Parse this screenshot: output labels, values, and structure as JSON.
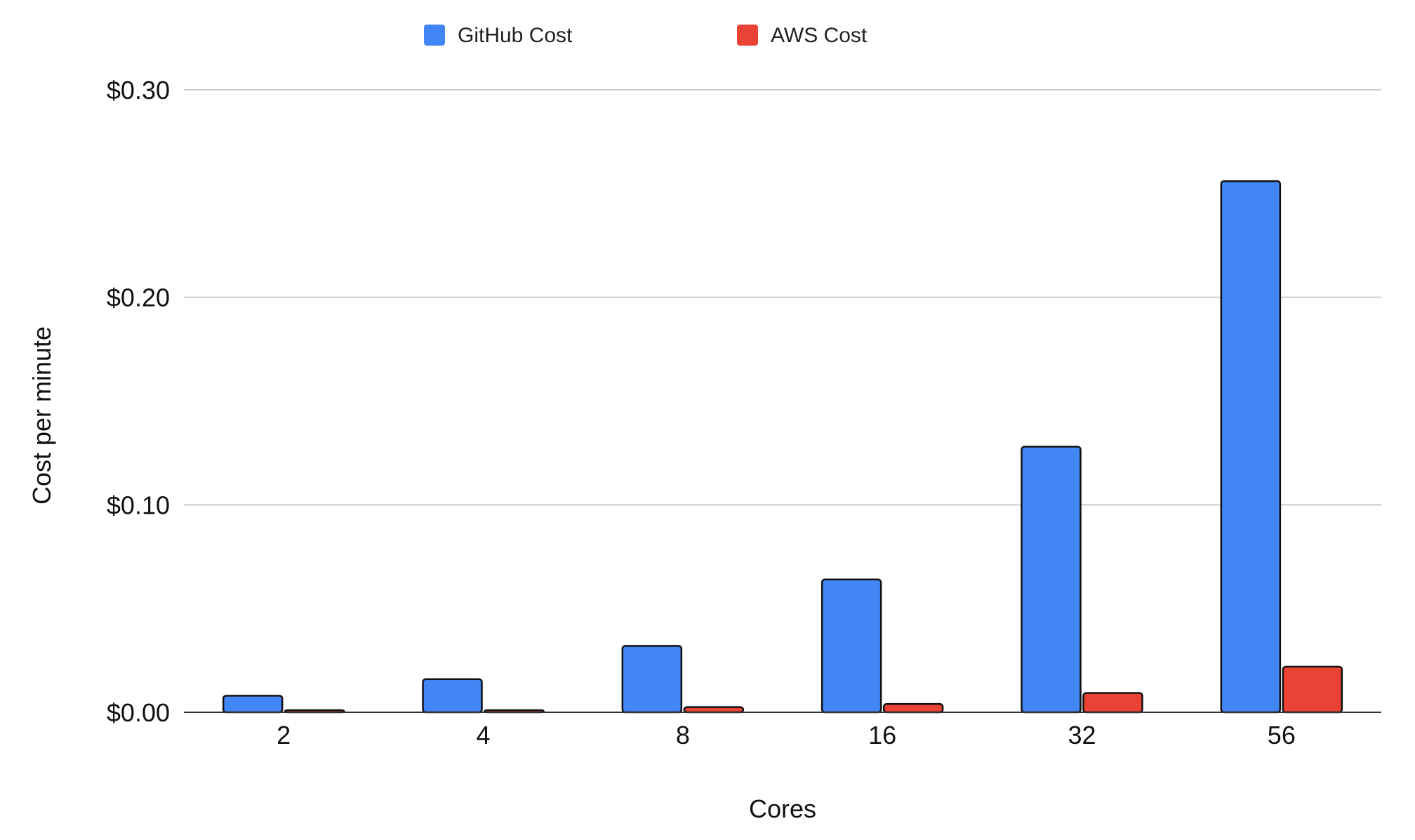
{
  "chart_data": {
    "type": "bar",
    "title": "",
    "xlabel": "Cores",
    "ylabel": "Cost per minute",
    "categories": [
      "2",
      "4",
      "8",
      "16",
      "32",
      "56"
    ],
    "series": [
      {
        "name": "GitHub Cost",
        "color": "#4285f4",
        "values": [
          0.008,
          0.016,
          0.032,
          0.064,
          0.128,
          0.256
        ]
      },
      {
        "name": "AWS Cost",
        "color": "#ea4335",
        "values": [
          0.0006,
          0.0007,
          0.0025,
          0.004,
          0.0093,
          0.022
        ]
      }
    ],
    "ylim": [
      0,
      0.3
    ],
    "yticks": [
      0,
      0.1,
      0.2,
      0.3
    ],
    "ytick_labels": [
      "$0.00",
      "$0.10",
      "$0.20",
      "$0.30"
    ],
    "grid": true,
    "legend_position": "top"
  }
}
